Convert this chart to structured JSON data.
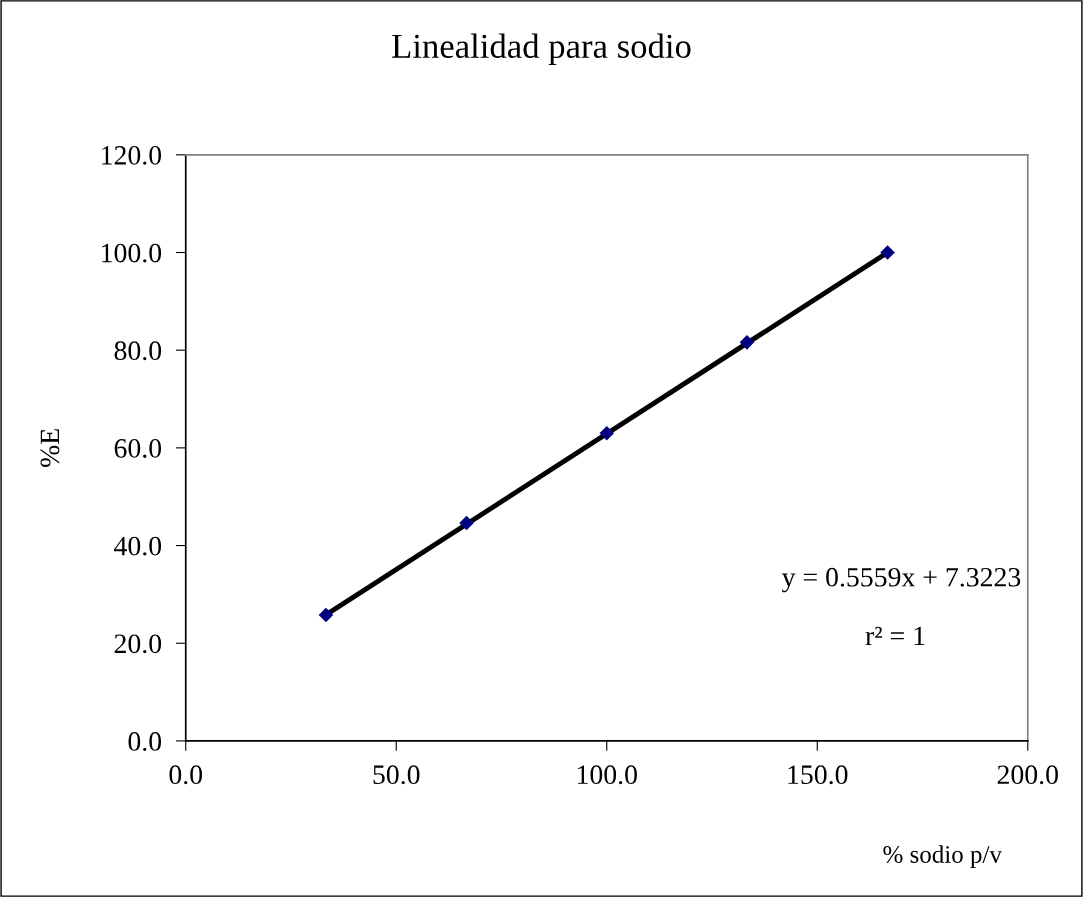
{
  "chart_data": {
    "type": "scatter",
    "title": "Linealidad para sodio",
    "xlabel": "% sodio p/v",
    "ylabel": "%E",
    "series": [
      {
        "color": "#000080",
        "marker": "diamond",
        "x": [
          33.3,
          66.7,
          100.0,
          133.3,
          166.7
        ],
        "values": [
          25.8,
          44.6,
          63.0,
          81.6,
          100.0
        ]
      },
      {
        "type": "line",
        "color": "#000000",
        "marker": "none",
        "line_style": "solid",
        "x": [
          33.3,
          166.7
        ],
        "values": [
          25.8,
          100.0
        ]
      }
    ],
    "xlim": [
      0,
      200
    ],
    "ylim": [
      0,
      120
    ],
    "xticks": [
      {
        "value": 0,
        "label": "0.0"
      },
      {
        "value": 50,
        "label": "50.0"
      },
      {
        "value": 100,
        "label": "100.0"
      },
      {
        "value": 150,
        "label": "150.0"
      },
      {
        "value": 200,
        "label": "200.0"
      }
    ],
    "yticks": [
      {
        "value": 0,
        "label": "0.0"
      },
      {
        "value": 20,
        "label": "20.0"
      },
      {
        "value": 40,
        "label": "40.0"
      },
      {
        "value": 60,
        "label": "60.0"
      },
      {
        "value": 80,
        "label": "80.0"
      },
      {
        "value": 100,
        "label": "100.0"
      },
      {
        "value": 120,
        "label": "120.0"
      }
    ],
    "annotations": [
      "y = 0.5559x + 7.3223",
      "r² = 1"
    ],
    "grid": false,
    "legend": false
  }
}
